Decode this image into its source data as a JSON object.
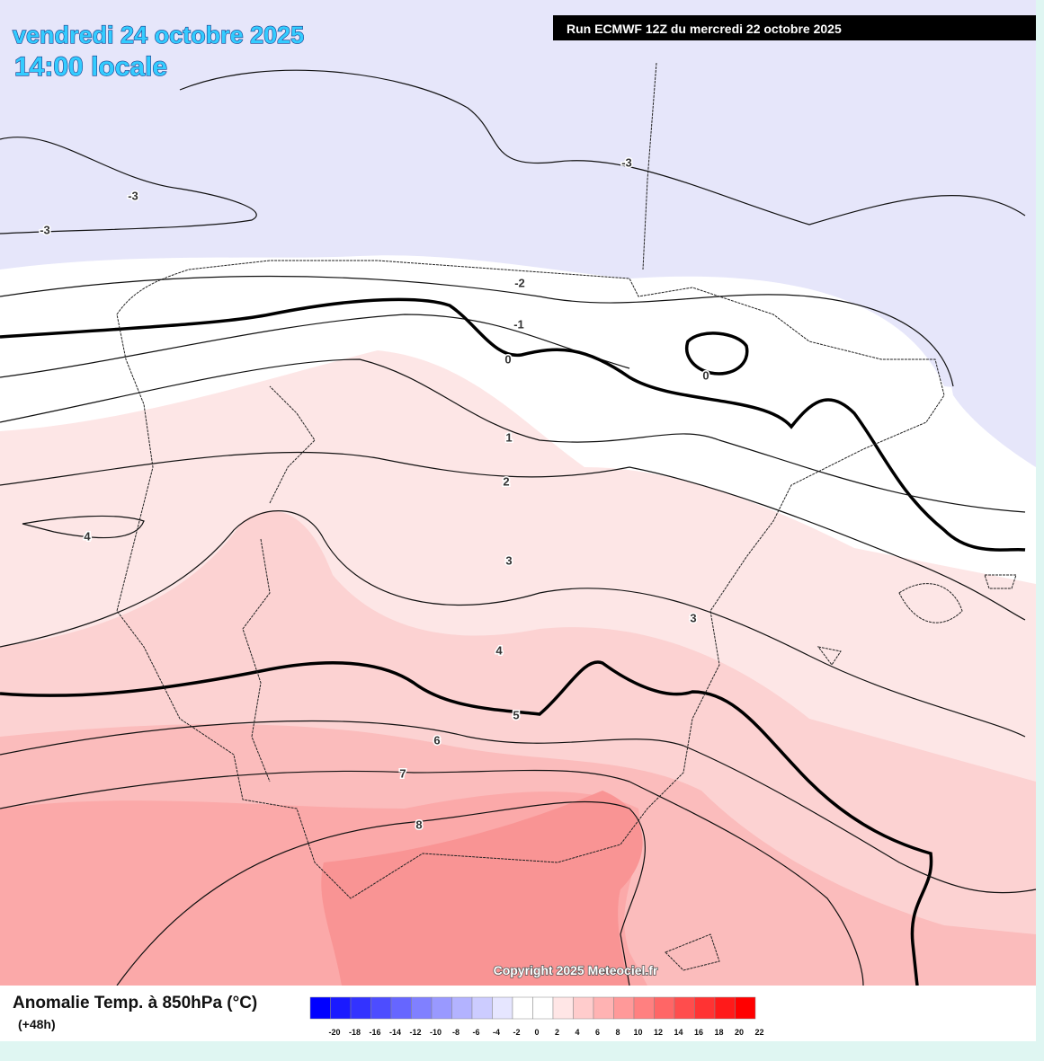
{
  "header": {
    "date": "vendredi 24 octobre 2025",
    "time": "14:00 locale",
    "run": "Run ECMWF 12Z du mercredi 22 octobre 2025"
  },
  "map": {
    "contour_labels": [
      -3,
      -3,
      -3,
      -2,
      -1,
      0,
      0,
      1,
      2,
      3,
      3,
      4,
      4,
      5,
      6,
      7,
      8
    ],
    "copyright": "Copyright 2025 Meteociel.fr"
  },
  "legend": {
    "title": "Anomalie Temp. à 850hPa (°C)",
    "lead": "(+48h)",
    "ticks": [
      -20,
      -18,
      -16,
      -14,
      -12,
      -10,
      -8,
      -6,
      -4,
      -2,
      0,
      2,
      4,
      6,
      8,
      10,
      12,
      14,
      16,
      18,
      20,
      22
    ],
    "colors": [
      "#0000ff",
      "#1a1aff",
      "#3333ff",
      "#4d4dff",
      "#6666ff",
      "#8080ff",
      "#9999ff",
      "#b3b3ff",
      "#ccccff",
      "#e6e6ff",
      "#ffffff",
      "#ffffff",
      "#ffe6e6",
      "#ffcccc",
      "#ffb3b3",
      "#ff9999",
      "#ff8080",
      "#ff6666",
      "#ff4d4d",
      "#ff3333",
      "#ff1a1a",
      "#ff0000"
    ]
  }
}
